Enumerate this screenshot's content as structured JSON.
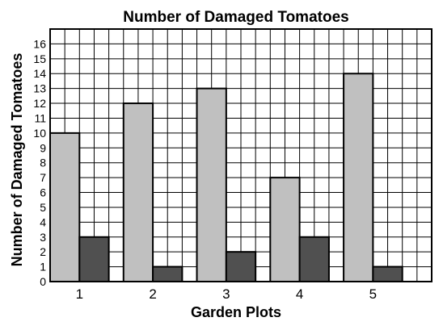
{
  "chart_data": {
    "type": "bar",
    "title": "Number of Damaged Tomatoes",
    "xlabel": "Garden Plots",
    "ylabel": "Number of Damaged Tomatoes",
    "categories": [
      "1",
      "2",
      "3",
      "4",
      "5"
    ],
    "series": [
      {
        "values": [
          10,
          12,
          13,
          7,
          14
        ],
        "color": "#c0c0c0"
      },
      {
        "values": [
          3,
          1,
          2,
          3,
          1
        ],
        "color": "#505050"
      }
    ],
    "yticks": [
      "0",
      "1",
      "2",
      "3",
      "4",
      "5",
      "6",
      "7",
      "8",
      "9",
      "10",
      "11",
      "12",
      "13",
      "14",
      "15",
      "16"
    ],
    "ylim": [
      0,
      17
    ],
    "grid": true,
    "legend": "none"
  }
}
